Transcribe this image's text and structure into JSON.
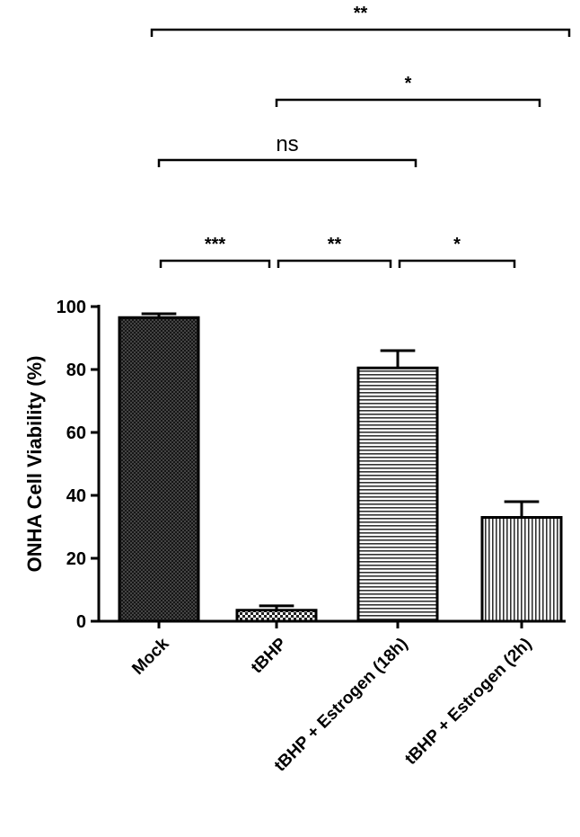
{
  "chart_data": {
    "type": "bar",
    "y_label": "ONHA Cell Viability (%)",
    "categories": [
      "Mock",
      "tBHP",
      "tBHP + Estrogen (18h)",
      "tBHP + Estrogen (2h)"
    ],
    "values": [
      96.5,
      3.5,
      80.5,
      33
    ],
    "errors": [
      1.2,
      1.4,
      5.5,
      5
    ],
    "patterns": [
      "crosshatch",
      "checker",
      "horizontal",
      "vertical"
    ],
    "color": "#000000",
    "ylim": [
      0,
      100
    ],
    "yticks": [
      0,
      20,
      40,
      60,
      80,
      100
    ],
    "comparisons": [
      {
        "from": "Mock",
        "to": "tBHP",
        "label": "***"
      },
      {
        "from": "tBHP",
        "to": "tBHP + Estrogen (18h)",
        "label": "**"
      },
      {
        "from": "tBHP + Estrogen (18h)",
        "to": "tBHP + Estrogen (2h)",
        "label": "*"
      },
      {
        "from": "Mock",
        "to": "tBHP + Estrogen (18h)",
        "label": "ns"
      },
      {
        "from": "tBHP",
        "to": "tBHP + Estrogen (2h)",
        "label": "*"
      },
      {
        "from": "Mock",
        "to": "tBHP + Estrogen (2h)",
        "label": "**"
      }
    ]
  }
}
